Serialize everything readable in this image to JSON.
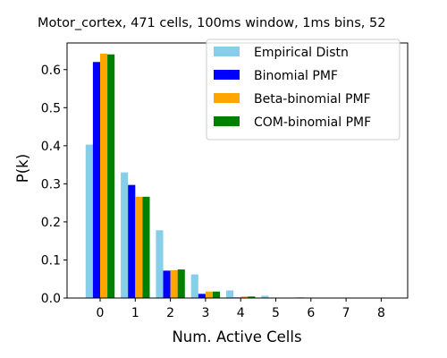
{
  "chart_data": {
    "type": "bar",
    "title": "Motor_cortex, 471 cells, 100ms window, 1ms bins, 52",
    "xlabel": "Num. Active Cells",
    "ylabel": "P(k)",
    "categories": [
      "0",
      "1",
      "2",
      "3",
      "4",
      "5",
      "6",
      "7",
      "8"
    ],
    "ylim": [
      0,
      0.67
    ],
    "yticks": [
      "0.0",
      "0.1",
      "0.2",
      "0.3",
      "0.4",
      "0.5",
      "0.6"
    ],
    "grid": false,
    "legend_position": "top-right",
    "series": [
      {
        "name": "Empirical Distn",
        "color": "#87ceeb",
        "values": [
          0.403,
          0.33,
          0.178,
          0.062,
          0.02,
          0.006,
          0.002,
          0.001,
          0.0003
        ]
      },
      {
        "name": "Binomial PMF",
        "color": "#0000ff",
        "values": [
          0.62,
          0.297,
          0.072,
          0.011,
          0.0015,
          0.0002,
          0.0,
          0.0,
          0.0
        ]
      },
      {
        "name": "Beta-binomial PMF",
        "color": "#ffa500",
        "values": [
          0.642,
          0.266,
          0.073,
          0.017,
          0.004,
          0.001,
          0.0003,
          0.0001,
          0.0
        ]
      },
      {
        "name": "COM-binomial PMF",
        "color": "#008000",
        "values": [
          0.64,
          0.266,
          0.075,
          0.017,
          0.004,
          0.001,
          0.0002,
          0.0001,
          0.0
        ]
      }
    ]
  }
}
